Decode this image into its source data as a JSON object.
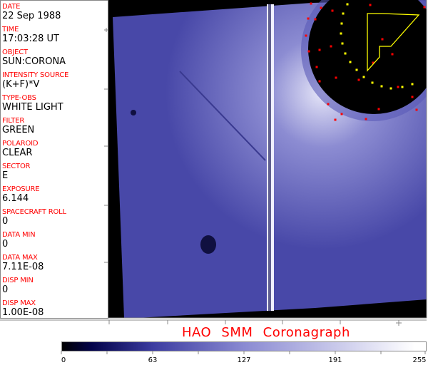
{
  "fields": [
    {
      "label": "DATE",
      "value": "22 Sep 1988"
    },
    {
      "label": "TIME",
      "value": "17:03:28 UT"
    },
    {
      "label": "OBJECT",
      "value": "SUN:CORONA"
    },
    {
      "label": "INTENSITY SOURCE",
      "value": "(K+F)*V"
    },
    {
      "label": "TYPE-OBS",
      "value": "WHITE LIGHT"
    },
    {
      "label": "FILTER",
      "value": "GREEN"
    },
    {
      "label": "POLAROID",
      "value": "CLEAR"
    },
    {
      "label": "SECTOR",
      "value": "E"
    },
    {
      "label": "EXPOSURE",
      "value": "6.144"
    },
    {
      "label": "SPACECRAFT ROLL",
      "value": "0"
    },
    {
      "label": "DATA MIN",
      "value": "0"
    },
    {
      "label": "DATA MAX",
      "value": "7.11E-08"
    },
    {
      "label": "DISP MIN",
      "value": "0"
    },
    {
      "label": "DISP MAX",
      "value": "1.00E-08"
    }
  ],
  "title": "HAO  SMM Coronagraph",
  "colorbar": {
    "labels": [
      "0",
      "63",
      "127",
      "191",
      "255"
    ],
    "colors": {
      "low": "#000000",
      "mid": "#8a8ad2",
      "high": "#ffffff"
    }
  },
  "colors": {
    "label": "#ff0000",
    "image_blue": "#5a5ab8",
    "marker_red": "#ff0000",
    "marker_yellow": "#ffff00"
  }
}
